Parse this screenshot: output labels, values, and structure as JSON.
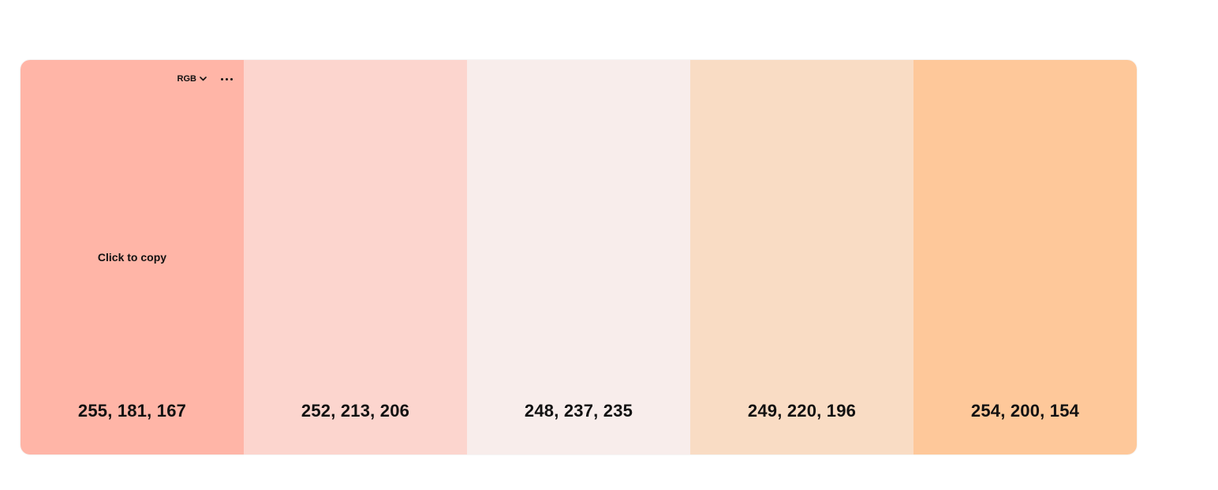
{
  "palette": {
    "format_label": "RGB",
    "hint": "Click to copy",
    "swatches": [
      {
        "value": "255, 181, 167",
        "color": "#ffb5a7"
      },
      {
        "value": "252, 213, 206",
        "color": "#fcd5ce"
      },
      {
        "value": "248, 237, 235",
        "color": "#f8edeb"
      },
      {
        "value": "249, 220, 196",
        "color": "#f9dcc4"
      },
      {
        "value": "254, 200, 154",
        "color": "#fec89a"
      }
    ]
  },
  "icons": {
    "format_dropdown": "chevron-down-icon",
    "more": "more-horizontal-icon"
  }
}
